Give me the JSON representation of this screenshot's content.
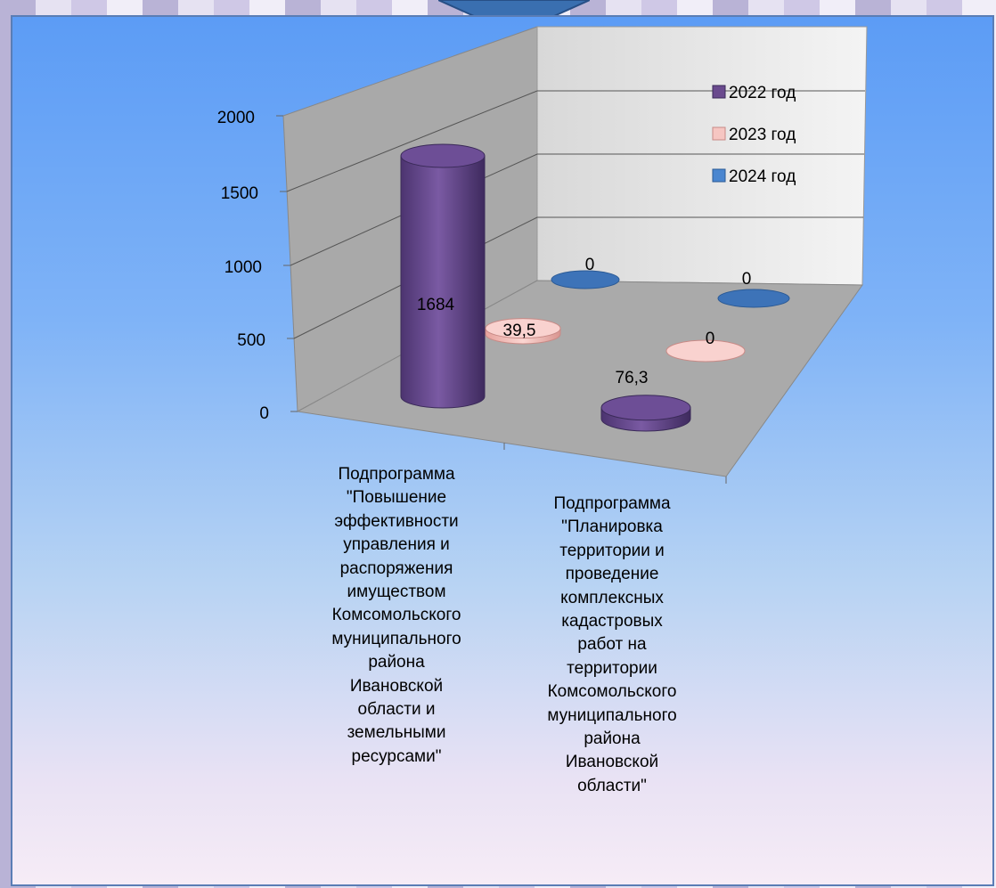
{
  "chart_data": {
    "type": "bar",
    "style": "3d-cylinder",
    "categories": [
      "Подпрограмма\n\"Повышение\nэффективности\nуправления и\nраспоряжения\nимуществом\nКомсомольского\nмуниципального\nрайона\nИвановской\nобласти и\nземельными\nресурсами\"",
      "Подпрограмма\n\"Планировка\nтерритории и\nпроведение\nкомплексных\nкадастровых\nработ на\nтерритории\nКомсомольского\nмуниципального\nрайона\nИвановской\nобласти\""
    ],
    "series": [
      {
        "name": "2022 год",
        "values": [
          1684,
          76.3
        ],
        "labels": [
          "1684",
          "76,3"
        ],
        "color": "#6a4a8e"
      },
      {
        "name": "2023 год",
        "values": [
          39.5,
          0
        ],
        "labels": [
          "39,5",
          "0"
        ],
        "color": "#f2b8b4"
      },
      {
        "name": "2024 год",
        "values": [
          0,
          0
        ],
        "labels": [
          "0",
          "0"
        ],
        "color": "#3d73b8"
      }
    ],
    "yticks": [
      "0",
      "500",
      "1000",
      "1500",
      "2000"
    ],
    "ylim": [
      0,
      2000
    ],
    "legend_position": "top-right",
    "grid": true
  }
}
